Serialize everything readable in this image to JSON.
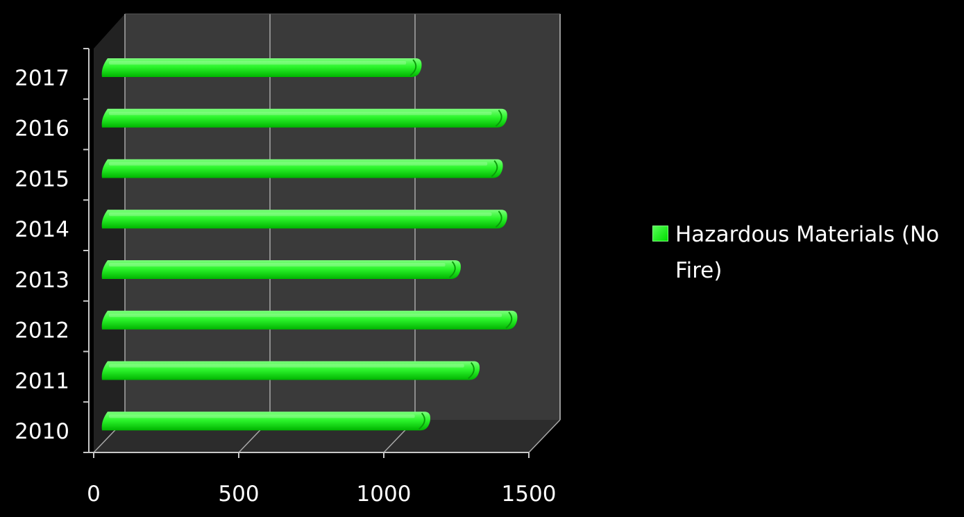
{
  "chart_data": {
    "type": "bar",
    "orientation": "horizontal",
    "style": "3d",
    "categories": [
      "2010",
      "2011",
      "2012",
      "2013",
      "2014",
      "2015",
      "2016",
      "2017"
    ],
    "series": [
      {
        "name": "Hazardous Materials (No Fire)",
        "values": [
          1150,
          1320,
          1450,
          1255,
          1415,
          1400,
          1415,
          1120
        ],
        "color": "#22ee22"
      }
    ],
    "xlim": [
      0,
      1500
    ],
    "x_ticks": [
      "0",
      "500",
      "1000",
      "1500"
    ],
    "grid": true,
    "legend_position": "right",
    "colors": {
      "background": "#000000",
      "plot_wall": "#3a3a3a",
      "plot_floor": "#2c2c2c",
      "gridline": "#a8a8a8",
      "axis": "#c8c8c8",
      "text": "#ffffff"
    }
  }
}
